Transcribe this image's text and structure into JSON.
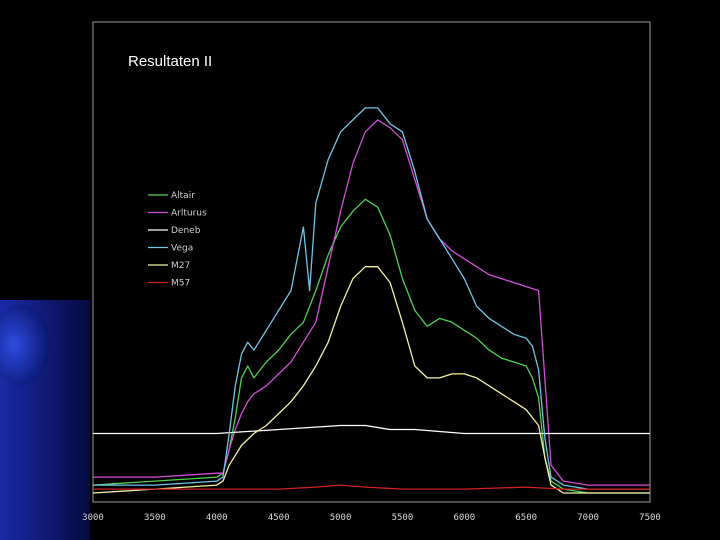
{
  "slide": {
    "title": "Resultaten II"
  },
  "chart_data": {
    "type": "line",
    "title": "",
    "xlabel": "",
    "ylabel": "",
    "xlim": [
      3000,
      7500
    ],
    "ylim": [
      0,
      100
    ],
    "xticks": [
      "3000",
      "3500",
      "4000",
      "4500",
      "5000",
      "5500",
      "6000",
      "6500",
      "7000",
      "7500"
    ],
    "grid": false,
    "legend_position": "upper-left",
    "series": [
      {
        "name": "Altair",
        "color": "#4fd24f",
        "x": [
          3000,
          3500,
          4000,
          4050,
          4100,
          4150,
          4200,
          4250,
          4300,
          4400,
          4500,
          4600,
          4700,
          4800,
          4900,
          5000,
          5100,
          5200,
          5300,
          5400,
          5500,
          5600,
          5700,
          5800,
          5900,
          6000,
          6100,
          6200,
          6300,
          6400,
          6500,
          6550,
          6600,
          6650,
          6700,
          6800,
          7000,
          7500
        ],
        "y": [
          3,
          4,
          5,
          6,
          12,
          20,
          30,
          33,
          30,
          34,
          37,
          41,
          44,
          52,
          61,
          68,
          72,
          75,
          73,
          66,
          55,
          47,
          43,
          45,
          44,
          42,
          40,
          37,
          35,
          34,
          33,
          30,
          25,
          10,
          4,
          2,
          1,
          1
        ]
      },
      {
        "name": "Arlturus",
        "color": "#d24fd8",
        "x": [
          3000,
          3500,
          4000,
          4050,
          4100,
          4150,
          4200,
          4250,
          4300,
          4400,
          4500,
          4600,
          4700,
          4800,
          4900,
          5000,
          5100,
          5200,
          5300,
          5400,
          5500,
          5600,
          5700,
          5800,
          5900,
          6000,
          6100,
          6200,
          6300,
          6400,
          6500,
          6600,
          6650,
          6700,
          6800,
          7000,
          7500
        ],
        "y": [
          5,
          5,
          6,
          6,
          12,
          17,
          21,
          24,
          26,
          28,
          31,
          34,
          39,
          44,
          58,
          72,
          84,
          92,
          95,
          93,
          90,
          80,
          70,
          65,
          62,
          60,
          58,
          56,
          55,
          54,
          53,
          52,
          30,
          8,
          4,
          3,
          3
        ]
      },
      {
        "name": "Deneb",
        "color": "#ffffff",
        "x": [
          3000,
          3500,
          4000,
          4500,
          5000,
          5200,
          5400,
          5600,
          6000,
          6500,
          6800,
          7000,
          7500
        ],
        "y": [
          16,
          16,
          16,
          17,
          18,
          18,
          17,
          17,
          16,
          16,
          16,
          16,
          16
        ]
      },
      {
        "name": "Vega",
        "color": "#6fc6e6",
        "x": [
          3000,
          3500,
          4000,
          4050,
          4100,
          4150,
          4200,
          4250,
          4300,
          4400,
          4500,
          4600,
          4700,
          4750,
          4800,
          4900,
          5000,
          5100,
          5200,
          5300,
          5400,
          5500,
          5600,
          5700,
          5800,
          5900,
          6000,
          6100,
          6200,
          6300,
          6400,
          6500,
          6550,
          6600,
          6650,
          6700,
          6800,
          7000,
          7500
        ],
        "y": [
          3,
          3,
          4,
          5,
          16,
          28,
          36,
          39,
          37,
          42,
          47,
          52,
          68,
          52,
          74,
          85,
          92,
          95,
          98,
          98,
          94,
          92,
          82,
          70,
          65,
          60,
          55,
          48,
          45,
          43,
          41,
          40,
          38,
          32,
          15,
          5,
          3,
          2,
          2
        ]
      },
      {
        "name": "M27",
        "color": "#f2f2a0",
        "x": [
          3000,
          3500,
          4000,
          4050,
          4100,
          4200,
          4300,
          4400,
          4500,
          4600,
          4700,
          4800,
          4900,
          5000,
          5100,
          5200,
          5300,
          5400,
          5500,
          5600,
          5700,
          5800,
          5900,
          6000,
          6100,
          6200,
          6300,
          6400,
          6500,
          6550,
          6600,
          6650,
          6700,
          6800,
          7000,
          7500
        ],
        "y": [
          1,
          2,
          3,
          4,
          8,
          13,
          16,
          18,
          21,
          24,
          28,
          33,
          39,
          48,
          55,
          58,
          58,
          54,
          44,
          33,
          30,
          30,
          31,
          31,
          30,
          28,
          26,
          24,
          22,
          20,
          18,
          10,
          3,
          1,
          1,
          1
        ]
      },
      {
        "name": "M57",
        "color": "#d02020",
        "x": [
          3000,
          3500,
          4000,
          4500,
          4800,
          5000,
          5200,
          5500,
          6000,
          6500,
          6800,
          7000,
          7500
        ],
        "y": [
          2,
          2,
          2,
          2,
          2.5,
          3,
          2.5,
          2,
          2,
          2.5,
          2,
          2,
          2
        ]
      }
    ]
  }
}
